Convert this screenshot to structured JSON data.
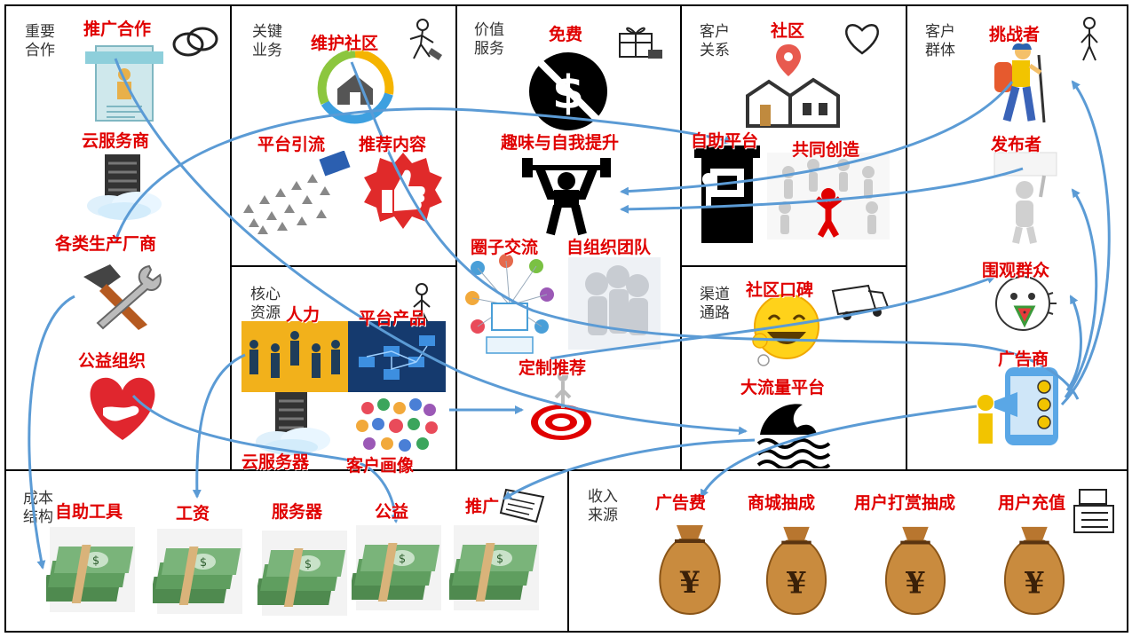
{
  "sections": {
    "key_partners": "重要\n合作",
    "key_activities": "关键\n业务",
    "value_propositions": "价值\n服务",
    "customer_relationships": "客户\n关系",
    "customer_segments": "客户\n群体",
    "key_resources": "核心\n资源",
    "channels": "渠道\n通路",
    "cost_structure": "成本\n结构",
    "revenue_streams": "收入\n来源"
  },
  "labels": {
    "promotion_partner": "推广合作",
    "cloud_provider": "云服务商",
    "manufacturers": "各类生产厂商",
    "charity_org": "公益组织",
    "maintain_community": "维护社区",
    "platform_traffic": "平台引流",
    "recommend_content": "推荐内容",
    "free": "免费",
    "fun_self_improvement": "趣味与自我提升",
    "circle_exchange": "圈子交流",
    "self_org_team": "自组织团队",
    "custom_recommend": "定制推荐",
    "community": "社区",
    "self_service_platform": "自助平台",
    "co_creation": "共同创造",
    "word_of_mouth": "社区口碑",
    "high_traffic_platform": "大流量平台",
    "challenger": "挑战者",
    "publisher": "发布者",
    "onlookers": "围观群众",
    "advertiser": "广告商",
    "manpower": "人力",
    "platform_product": "平台产品",
    "cloud_server": "云服务器",
    "user_profile": "客户画像",
    "self_service_tools": "自助工具",
    "wages": "工资",
    "servers": "服务器",
    "charity": "公益",
    "promotion": "推广",
    "ad_fee": "广告费",
    "mall_commission": "商城抽成",
    "tip_commission": "用户打赏抽成",
    "user_recharge": "用户充值"
  },
  "icons": {
    "partner": "rings-icon",
    "activities": "worker-icon",
    "value": "gift-icon",
    "relationship": "heart-icon",
    "segments": "person-icon",
    "resources": "person-icon",
    "channels": "truck-icon",
    "revenue": "cash-register-icon",
    "cost": "receipt-icon"
  },
  "colors": {
    "label": "#e00000",
    "arrow": "#5b9bd5",
    "border": "#000000"
  }
}
